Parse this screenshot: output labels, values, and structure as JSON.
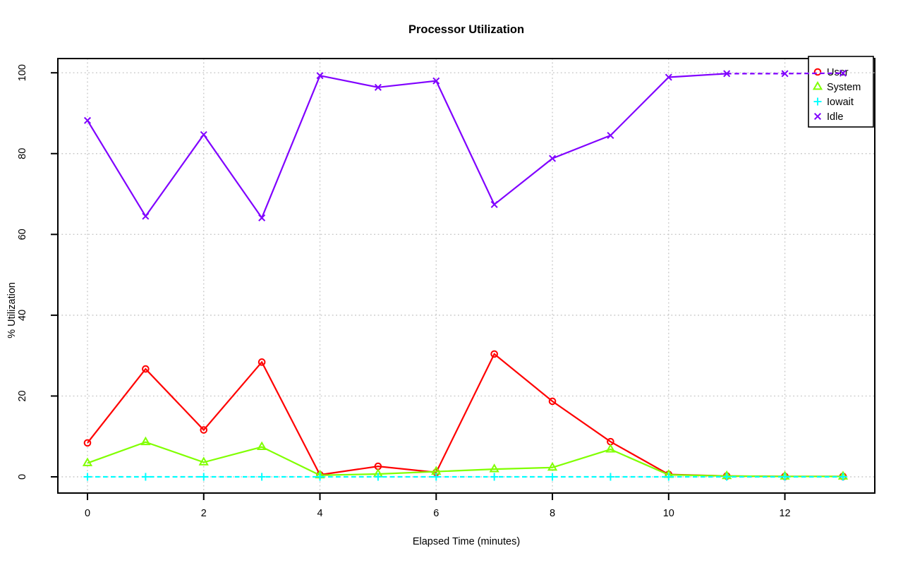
{
  "page": {
    "background": "#ffffff"
  },
  "chart_data": {
    "type": "line",
    "title": "Processor Utilization",
    "xlabel": "Elapsed Time (minutes)",
    "ylabel": "% Utilization",
    "x": [
      0,
      1,
      2,
      3,
      4,
      5,
      6,
      7,
      8,
      9,
      10,
      11,
      12,
      13
    ],
    "series": [
      {
        "name": "User",
        "color": "#ff0000",
        "marker": "circle",
        "line": "solid",
        "values": [
          8.4,
          26.7,
          11.6,
          28.4,
          0.5,
          2.6,
          1.1,
          30.4,
          18.7,
          8.7,
          0.6,
          0.2,
          0.1,
          0.1
        ]
      },
      {
        "name": "System",
        "color": "#80ff00",
        "marker": "triangle",
        "line": "solid",
        "values": [
          3.4,
          8.6,
          3.6,
          7.4,
          0.4,
          0.7,
          1.3,
          1.9,
          2.3,
          6.8,
          0.5,
          0.2,
          0.1,
          0.1
        ]
      },
      {
        "name": "Iowait",
        "color": "#00ffff",
        "marker": "plus",
        "line": "dashed",
        "values": [
          0,
          0,
          0,
          0,
          0,
          0,
          0,
          0,
          0,
          0,
          0,
          0,
          0,
          0
        ]
      },
      {
        "name": "Idle",
        "color": "#8000ff",
        "marker": "x",
        "line": "solid",
        "dashed_from_x": 11,
        "values": [
          88.2,
          64.5,
          84.7,
          64.1,
          99.3,
          96.4,
          98.0,
          67.4,
          78.8,
          84.5,
          98.9,
          99.8,
          99.8,
          99.9
        ]
      }
    ],
    "xticks": [
      0,
      2,
      4,
      6,
      8,
      10,
      12
    ],
    "yticks": [
      0,
      20,
      40,
      60,
      80,
      100
    ],
    "xlim": [
      -0.5,
      13.5
    ],
    "ylim": [
      -4,
      103.5
    ],
    "grid": "dotted",
    "grid_color": "#c9c9c9",
    "axis_color": "#000000",
    "legend": {
      "position": "top-right",
      "entries": [
        "User",
        "System",
        "Iowait",
        "Idle"
      ]
    }
  }
}
